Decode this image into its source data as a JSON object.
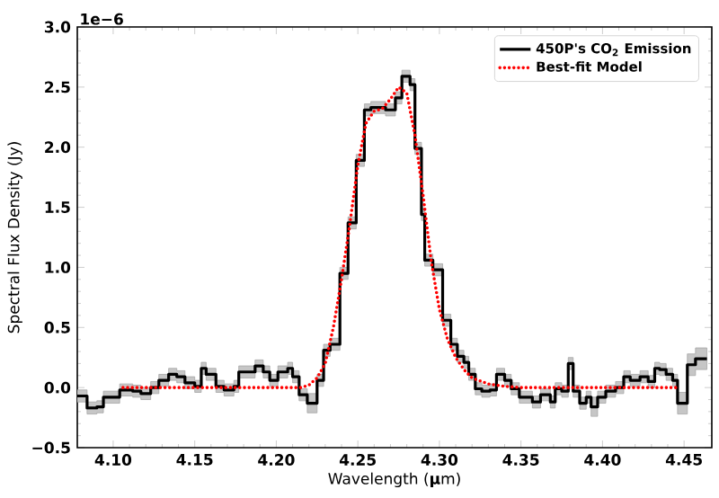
{
  "chart_data": {
    "type": "step",
    "xlabel": "Wavelength (**μ**m)",
    "ylabel": "Spectral Flux Density (Jy)",
    "annotations": [
      "1e−6"
    ],
    "xlim": [
      4.078,
      4.467
    ],
    "ylim": [
      -0.5,
      3.0
    ],
    "xticks": [
      {
        "value": 4.1,
        "label": "4.10"
      },
      {
        "value": 4.15,
        "label": "4.15"
      },
      {
        "value": 4.2,
        "label": "4.20"
      },
      {
        "value": 4.25,
        "label": "4.25"
      },
      {
        "value": 4.3,
        "label": "4.30"
      },
      {
        "value": 4.35,
        "label": "4.35"
      },
      {
        "value": 4.4,
        "label": "4.40"
      },
      {
        "value": 4.45,
        "label": "4.45"
      }
    ],
    "yticks": [
      {
        "value": -0.5,
        "label": "−0.5"
      },
      {
        "value": 0,
        "label": "0.0"
      },
      {
        "value": 0.5,
        "label": "0.5"
      },
      {
        "value": 1,
        "label": "1.0"
      },
      {
        "value": 1.5,
        "label": "1.5"
      },
      {
        "value": 2,
        "label": "2.0"
      },
      {
        "value": 2.5,
        "label": "2.5"
      },
      {
        "value": 3,
        "label": "3.0"
      }
    ],
    "legend": "top right",
    "grid": false,
    "series": [
      {
        "name": "450P's CO$_{2}$ Emission",
        "color": "#000000",
        "line_style": "solid",
        "x": [
          4.078,
          4.084,
          4.09,
          4.094,
          4.104,
          4.112,
          4.117,
          4.123,
          4.128,
          4.134,
          4.139,
          4.144,
          4.15,
          4.154,
          4.157,
          4.163,
          4.168,
          4.174,
          4.177,
          4.187,
          4.192,
          4.196,
          4.201,
          4.207,
          4.21,
          4.214,
          4.219,
          4.225,
          4.229,
          4.233,
          4.239,
          4.244,
          4.249,
          4.254,
          4.258,
          4.267,
          4.273,
          4.277,
          4.282,
          4.285,
          4.289,
          4.291,
          4.296,
          4.302,
          4.307,
          4.311,
          4.315,
          4.318,
          4.322,
          4.326,
          4.331,
          4.335,
          4.34,
          4.344,
          4.349,
          4.357,
          4.362,
          4.368,
          4.371,
          4.375,
          4.379,
          4.382,
          4.386,
          4.39,
          4.393,
          4.397,
          4.402,
          4.408,
          4.413,
          4.417,
          4.423,
          4.428,
          4.432,
          4.435,
          4.439,
          4.443,
          4.446,
          4.452,
          4.457,
          4.464
        ],
        "values": [
          -0.07,
          -0.17,
          -0.16,
          -0.08,
          -0.02,
          -0.03,
          -0.05,
          0.0,
          0.06,
          0.11,
          0.09,
          0.04,
          0.01,
          0.16,
          0.11,
          0.01,
          -0.02,
          0.01,
          0.13,
          0.18,
          0.13,
          0.06,
          0.13,
          0.16,
          0.09,
          -0.06,
          -0.13,
          0.06,
          0.31,
          0.36,
          0.95,
          1.37,
          1.89,
          2.31,
          2.33,
          2.31,
          2.41,
          2.59,
          2.52,
          1.99,
          1.44,
          1.06,
          0.98,
          0.56,
          0.36,
          0.26,
          0.21,
          0.11,
          -0.01,
          -0.03,
          -0.02,
          0.11,
          0.06,
          -0.01,
          -0.08,
          -0.12,
          -0.06,
          -0.12,
          -0.01,
          -0.03,
          0.2,
          -0.03,
          -0.13,
          -0.08,
          -0.16,
          -0.08,
          -0.03,
          0.0,
          0.09,
          0.06,
          0.09,
          0.05,
          0.16,
          0.15,
          0.11,
          0.06,
          -0.13,
          0.19,
          0.24,
          0.24
        ],
        "lower": [
          -0.12,
          -0.22,
          -0.21,
          -0.13,
          -0.07,
          -0.08,
          -0.1,
          -0.05,
          0.01,
          0.06,
          0.04,
          -0.01,
          -0.04,
          0.11,
          0.06,
          -0.04,
          -0.07,
          -0.04,
          0.08,
          0.13,
          0.08,
          0.01,
          0.08,
          0.11,
          0.04,
          -0.11,
          -0.21,
          0.01,
          0.26,
          0.31,
          0.9,
          1.32,
          1.84,
          2.26,
          2.28,
          2.26,
          2.36,
          2.54,
          2.47,
          1.94,
          1.39,
          1.01,
          0.93,
          0.51,
          0.31,
          0.21,
          0.16,
          0.06,
          -0.06,
          -0.08,
          -0.07,
          0.06,
          0.01,
          -0.06,
          -0.13,
          -0.17,
          -0.11,
          -0.17,
          -0.06,
          -0.08,
          0.15,
          -0.08,
          -0.18,
          -0.13,
          -0.24,
          -0.13,
          -0.08,
          -0.05,
          0.04,
          0.01,
          0.04,
          0.0,
          0.11,
          0.1,
          0.06,
          0.01,
          -0.22,
          0.1,
          0.15,
          0.15
        ],
        "upper": [
          -0.02,
          -0.12,
          -0.11,
          -0.03,
          0.03,
          0.02,
          0.0,
          0.05,
          0.11,
          0.16,
          0.14,
          0.09,
          0.06,
          0.21,
          0.16,
          0.06,
          0.03,
          0.06,
          0.18,
          0.23,
          0.18,
          0.11,
          0.18,
          0.21,
          0.14,
          -0.01,
          -0.05,
          0.11,
          0.36,
          0.41,
          1.0,
          1.42,
          1.94,
          2.36,
          2.38,
          2.36,
          2.46,
          2.64,
          2.57,
          2.04,
          1.49,
          1.11,
          1.03,
          0.61,
          0.41,
          0.31,
          0.26,
          0.16,
          0.04,
          0.02,
          0.03,
          0.16,
          0.11,
          0.04,
          -0.03,
          -0.07,
          -0.01,
          -0.07,
          0.04,
          0.02,
          0.25,
          0.02,
          -0.08,
          -0.03,
          -0.08,
          -0.03,
          0.02,
          0.05,
          0.14,
          0.11,
          0.14,
          0.1,
          0.21,
          0.2,
          0.16,
          0.11,
          -0.04,
          0.28,
          0.33,
          0.33
        ]
      },
      {
        "name": "Best-fit Model",
        "type": "line",
        "color": "#ff0000",
        "line_style": "dotted",
        "x": [
          4.106,
          4.215,
          4.22,
          4.225,
          4.23,
          4.235,
          4.24,
          4.245,
          4.25,
          4.255,
          4.26,
          4.265,
          4.27,
          4.275,
          4.28,
          4.285,
          4.29,
          4.295,
          4.3,
          4.305,
          4.31,
          4.315,
          4.32,
          4.33,
          4.34,
          4.35,
          4.446
        ],
        "values": [
          0.0,
          0.0,
          0.02,
          0.08,
          0.2,
          0.5,
          0.9,
          1.35,
          1.85,
          2.2,
          2.3,
          2.32,
          2.4,
          2.5,
          2.45,
          2.1,
          1.6,
          1.05,
          0.65,
          0.4,
          0.25,
          0.15,
          0.08,
          0.03,
          0.01,
          0.0,
          0.0
        ]
      }
    ]
  }
}
